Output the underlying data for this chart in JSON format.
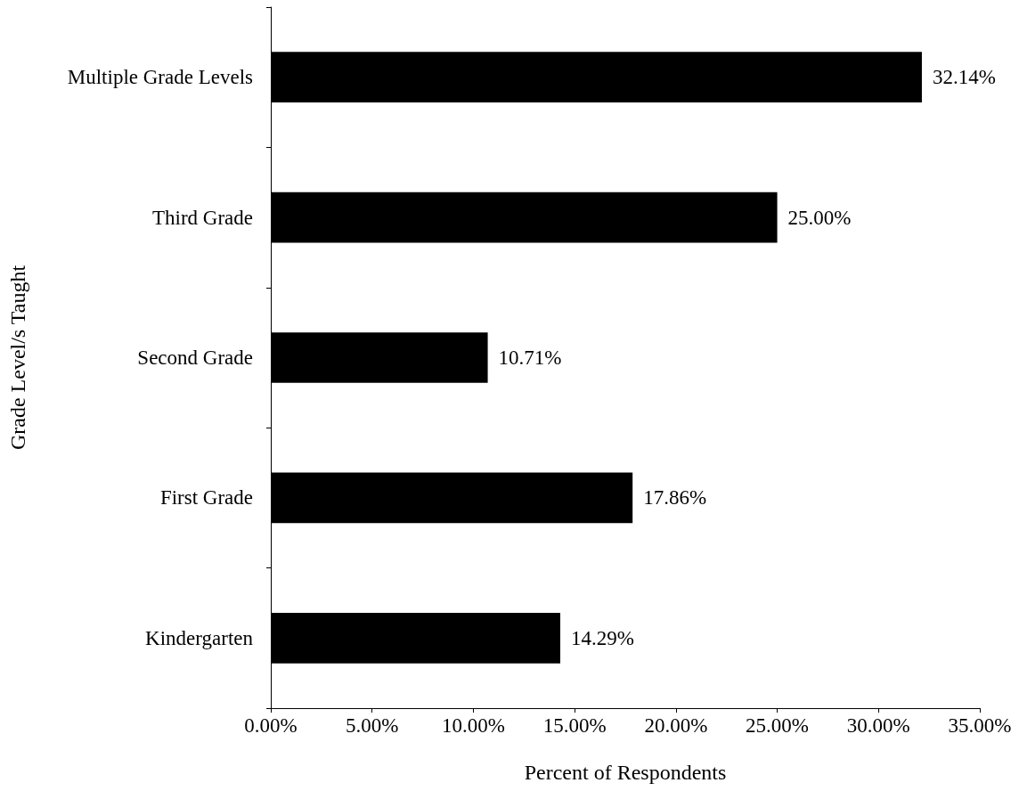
{
  "chart_data": {
    "type": "bar",
    "orientation": "horizontal",
    "xlabel": "Percent of Respondents",
    "ylabel": "Grade Level/s Taught",
    "categories": [
      "Multiple Grade Levels",
      "Third Grade",
      "Second Grade",
      "First Grade",
      "Kindergarten"
    ],
    "values": [
      32.14,
      25.0,
      10.71,
      17.86,
      14.29
    ],
    "color": "#000000",
    "value_labels": [
      "32.14%",
      "25.00%",
      "10.71%",
      "17.86%",
      "14.29%"
    ],
    "xlim": [
      0,
      35
    ],
    "xticks": [
      {
        "value": 0,
        "label": "0.00%"
      },
      {
        "value": 5,
        "label": "5.00%"
      },
      {
        "value": 10,
        "label": "10.00%"
      },
      {
        "value": 15,
        "label": "15.00%"
      },
      {
        "value": 20,
        "label": "20.00%"
      },
      {
        "value": 25,
        "label": "25.00%"
      },
      {
        "value": 30,
        "label": "30.00%"
      },
      {
        "value": 35,
        "label": "35.00%"
      }
    ],
    "grid": false
  }
}
